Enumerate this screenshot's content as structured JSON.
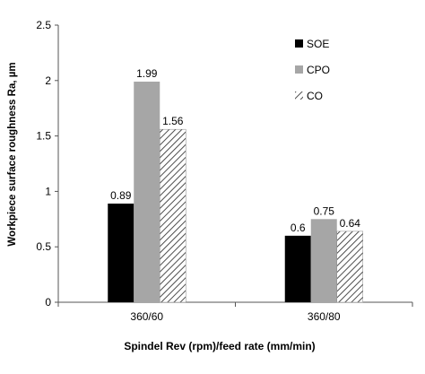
{
  "chart_data": {
    "type": "bar",
    "title": "",
    "xlabel": "Spindel Rev (rpm)/feed rate (mm/min)",
    "ylabel": "Workpiece surface roughness Ra, µm",
    "ylim": [
      0,
      2.5
    ],
    "yticks": [
      "0",
      "0.5",
      "1",
      "1.5",
      "2",
      "2.5"
    ],
    "categories": [
      "360/60",
      "360/80"
    ],
    "grid": false,
    "legend_position": "top-right",
    "series": [
      {
        "name": "SOE",
        "values": [
          0.89,
          0.6
        ],
        "labels": [
          "0.89",
          "0.6"
        ],
        "fill": "solid",
        "color": "#000000"
      },
      {
        "name": "CPO",
        "values": [
          1.99,
          0.75
        ],
        "labels": [
          "1.99",
          "0.75"
        ],
        "fill": "solid",
        "color": "#a6a6a6"
      },
      {
        "name": "CO",
        "values": [
          1.56,
          0.64
        ],
        "labels": [
          "1.56",
          "0.64"
        ],
        "fill": "hatch",
        "color": "#3a3a3a"
      }
    ]
  }
}
